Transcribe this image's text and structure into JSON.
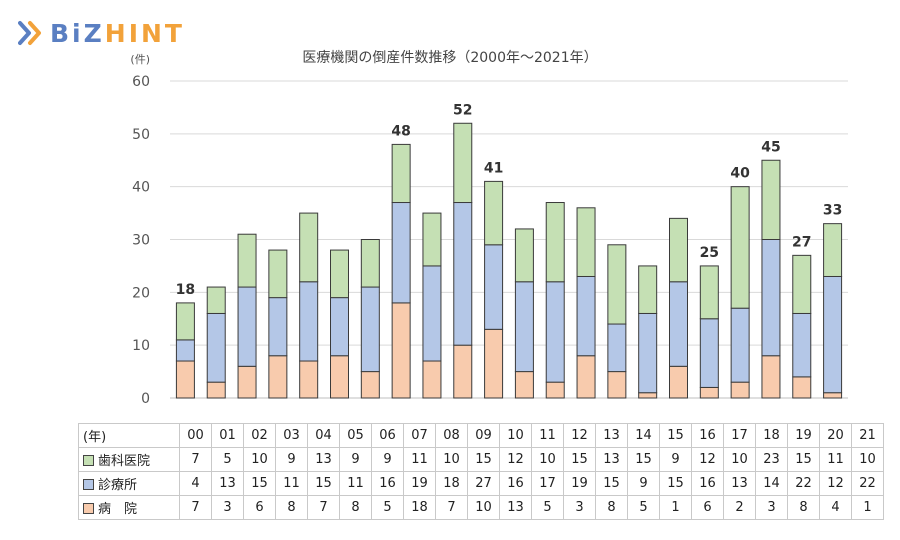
{
  "brand": {
    "left": "BiZ",
    "right": "HINT"
  },
  "chart_data": {
    "type": "bar",
    "stacked": true,
    "title": "医療機関の倒産件数推移（2000年～2021年）",
    "unit_label": "(件)",
    "xlabel": "(年)",
    "ylim": [
      0,
      60
    ],
    "yticks": [
      0,
      10,
      20,
      30,
      40,
      50,
      60
    ],
    "grid": true,
    "categories": [
      "00",
      "01",
      "02",
      "03",
      "04",
      "05",
      "06",
      "07",
      "08",
      "09",
      "10",
      "11",
      "12",
      "13",
      "14",
      "15",
      "16",
      "17",
      "18",
      "19",
      "20",
      "21"
    ],
    "series": [
      {
        "name": "病　院",
        "color": "#f8cbad",
        "values": [
          7,
          3,
          6,
          8,
          7,
          8,
          5,
          18,
          7,
          10,
          13,
          5,
          3,
          8,
          5,
          1,
          6,
          2,
          3,
          8,
          4,
          1
        ]
      },
      {
        "name": "診療所",
        "color": "#b4c7e7",
        "values": [
          4,
          13,
          15,
          11,
          15,
          11,
          16,
          19,
          18,
          27,
          16,
          17,
          19,
          15,
          9,
          15,
          16,
          13,
          14,
          22,
          12,
          22
        ]
      },
      {
        "name": "歯科医院",
        "color": "#c5e0b4",
        "values": [
          7,
          5,
          10,
          9,
          13,
          9,
          9,
          11,
          10,
          15,
          12,
          10,
          15,
          13,
          15,
          9,
          12,
          10,
          23,
          15,
          11,
          10
        ]
      }
    ],
    "totals": [
      18,
      21,
      31,
      28,
      35,
      28,
      30,
      48,
      35,
      52,
      41,
      32,
      37,
      36,
      29,
      25,
      34,
      25,
      40,
      45,
      27,
      33
    ],
    "labeled_totals": {
      "00": 18,
      "07": 48,
      "09": 52,
      "10": 41,
      "17": 25,
      "18": 40,
      "19": 45,
      "20": 27,
      "21": 33
    }
  }
}
